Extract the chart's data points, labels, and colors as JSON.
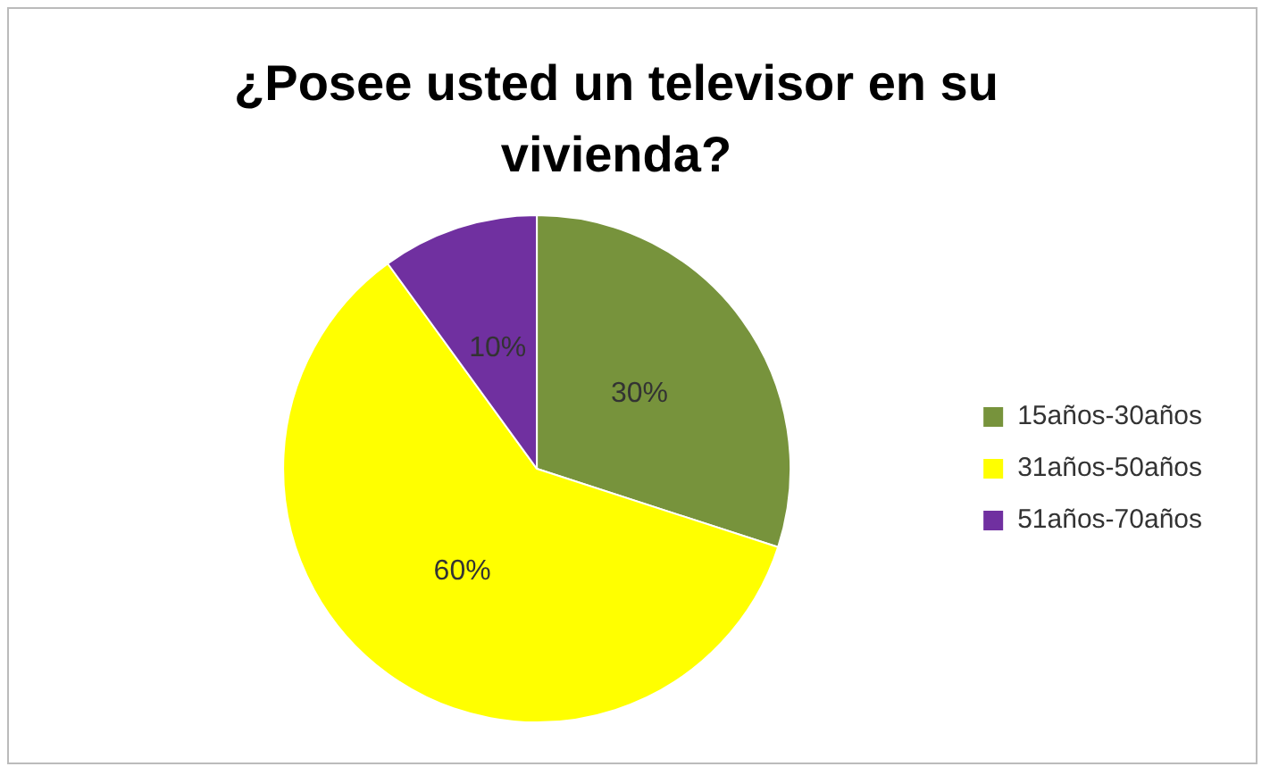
{
  "chart_data": {
    "type": "pie",
    "title": "¿Posee usted un televisor en su vivienda?",
    "categories": [
      "15años-30años",
      "31años-50años",
      "51años-70años"
    ],
    "values": [
      30,
      60,
      10
    ],
    "colors": [
      "#77933c",
      "#ffff00",
      "#7030a0"
    ],
    "value_labels": [
      "30%",
      "60%",
      "10%"
    ],
    "legend": "right"
  }
}
